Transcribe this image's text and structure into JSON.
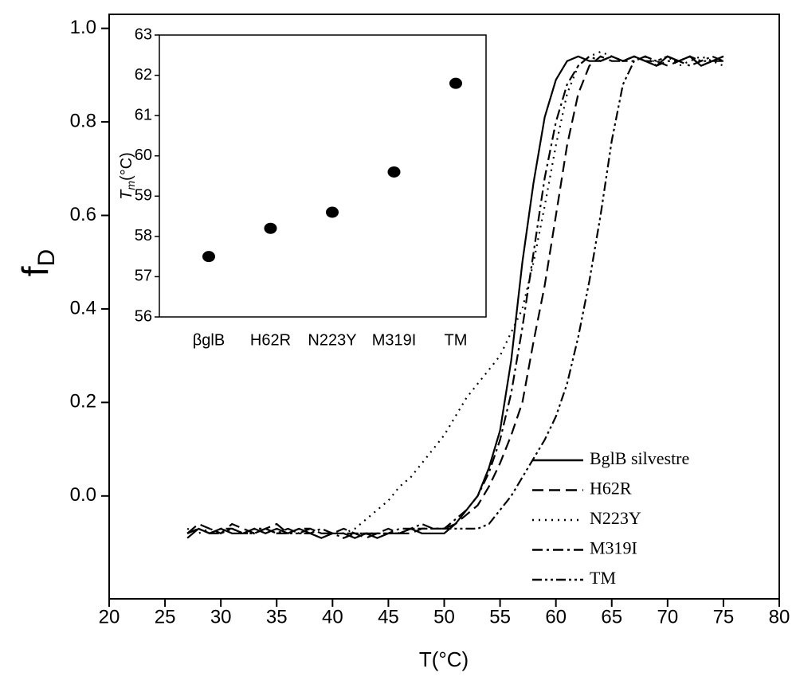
{
  "chart_data": [
    {
      "type": "line",
      "xlabel": "T(°C)",
      "ylabel": [
        "f",
        "D"
      ],
      "x": [
        27,
        28,
        29,
        30,
        31,
        32,
        33,
        34,
        35,
        36,
        37,
        38,
        39,
        40,
        41,
        42,
        43,
        44,
        45,
        46,
        47,
        48,
        49,
        50,
        51,
        52,
        53,
        54,
        55,
        56,
        57,
        58,
        59,
        60,
        61,
        62,
        63,
        64,
        65,
        66,
        67,
        68,
        69,
        70,
        71,
        72,
        73,
        74,
        75
      ],
      "xlim": [
        20,
        80
      ],
      "xticks": [
        20,
        25,
        30,
        35,
        40,
        45,
        50,
        55,
        60,
        65,
        70,
        75,
        80
      ],
      "ylim": [
        -0.22,
        1.03
      ],
      "yticks": [
        {
          "value": 0,
          "label": "0.0"
        },
        0.2,
        0.4,
        0.6,
        0.8,
        {
          "value": 1,
          "label": "1.0"
        }
      ],
      "series": [
        {
          "name": "BglB silvestre",
          "color": "#000000",
          "dash": "solid",
          "values": [
            -0.09,
            -0.07,
            -0.08,
            -0.07,
            -0.08,
            -0.08,
            -0.07,
            -0.08,
            -0.07,
            -0.08,
            -0.07,
            -0.08,
            -0.09,
            -0.08,
            -0.08,
            -0.09,
            -0.08,
            -0.09,
            -0.08,
            -0.08,
            -0.07,
            -0.08,
            -0.08,
            -0.08,
            -0.06,
            -0.03,
            0.0,
            0.06,
            0.14,
            0.29,
            0.5,
            0.67,
            0.81,
            0.89,
            0.93,
            0.94,
            0.93,
            0.93,
            0.94,
            0.93,
            0.94,
            0.93,
            0.92,
            0.94,
            0.93,
            0.94,
            0.92,
            0.93,
            0.93
          ]
        },
        {
          "name": "H62R",
          "color": "#000000",
          "dash": "dashed",
          "values": [
            -0.08,
            -0.06,
            -0.07,
            -0.08,
            -0.06,
            -0.07,
            -0.08,
            -0.07,
            -0.06,
            -0.08,
            -0.07,
            -0.07,
            -0.08,
            -0.08,
            -0.07,
            -0.08,
            -0.09,
            -0.08,
            -0.07,
            -0.08,
            -0.08,
            -0.07,
            -0.07,
            -0.07,
            -0.06,
            -0.04,
            -0.02,
            0.02,
            0.07,
            0.13,
            0.2,
            0.33,
            0.45,
            0.6,
            0.75,
            0.86,
            0.92,
            0.94,
            0.93,
            0.93,
            0.94,
            0.93,
            0.93,
            0.92,
            0.93,
            0.94,
            0.92,
            0.93,
            0.94
          ]
        },
        {
          "name": "N223Y",
          "color": "#000000",
          "dash": "dotted",
          "values": [
            -0.07,
            -0.08,
            -0.07,
            -0.08,
            -0.07,
            -0.08,
            -0.08,
            -0.07,
            -0.08,
            -0.07,
            -0.08,
            -0.08,
            -0.07,
            -0.08,
            -0.08,
            -0.07,
            -0.05,
            -0.03,
            -0.01,
            0.02,
            0.04,
            0.07,
            0.1,
            0.13,
            0.17,
            0.21,
            0.24,
            0.27,
            0.3,
            0.35,
            0.4,
            0.5,
            0.62,
            0.75,
            0.86,
            0.92,
            0.94,
            0.95,
            0.94,
            0.93,
            0.94,
            0.93,
            0.93,
            0.94,
            0.92,
            0.93,
            0.94,
            0.93,
            0.92
          ]
        },
        {
          "name": "M319I",
          "color": "#000000",
          "dash": "dashdot",
          "values": [
            -0.08,
            -0.07,
            -0.08,
            -0.07,
            -0.07,
            -0.08,
            -0.07,
            -0.07,
            -0.08,
            -0.07,
            -0.08,
            -0.08,
            -0.07,
            -0.08,
            -0.09,
            -0.08,
            -0.08,
            -0.08,
            -0.08,
            -0.07,
            -0.07,
            -0.06,
            -0.07,
            -0.07,
            -0.05,
            -0.03,
            0.0,
            0.05,
            0.12,
            0.22,
            0.36,
            0.52,
            0.68,
            0.8,
            0.88,
            0.92,
            0.94,
            0.93,
            0.94,
            0.93,
            0.93,
            0.94,
            0.92,
            0.93,
            0.93,
            0.92,
            0.93,
            0.94,
            0.93
          ]
        },
        {
          "name": "TM",
          "color": "#000000",
          "dash": "dashdotdot",
          "values": [
            -0.08,
            -0.07,
            -0.08,
            -0.08,
            -0.07,
            -0.08,
            -0.08,
            -0.07,
            -0.08,
            -0.08,
            -0.08,
            -0.07,
            -0.08,
            -0.08,
            -0.08,
            -0.08,
            -0.08,
            -0.08,
            -0.08,
            -0.08,
            -0.07,
            -0.07,
            -0.07,
            -0.07,
            -0.07,
            -0.07,
            -0.07,
            -0.06,
            -0.03,
            0.0,
            0.04,
            0.08,
            0.12,
            0.17,
            0.24,
            0.34,
            0.46,
            0.6,
            0.76,
            0.88,
            0.93,
            0.94,
            0.93,
            0.94,
            0.93,
            0.94,
            0.93,
            0.93,
            0.94
          ]
        }
      ],
      "legend": "lower right"
    },
    {
      "type": "scatter",
      "ylabel": [
        "T",
        "m",
        "(°C)"
      ],
      "categories": [
        "βglB",
        "H62R",
        "N223Y",
        "M319I",
        "TM"
      ],
      "values": [
        57.5,
        58.2,
        58.6,
        59.6,
        61.8
      ],
      "color": "#000000",
      "ylim": [
        56,
        63
      ],
      "yticks": [
        56,
        57,
        58,
        59,
        60,
        61,
        62,
        63
      ]
    }
  ]
}
